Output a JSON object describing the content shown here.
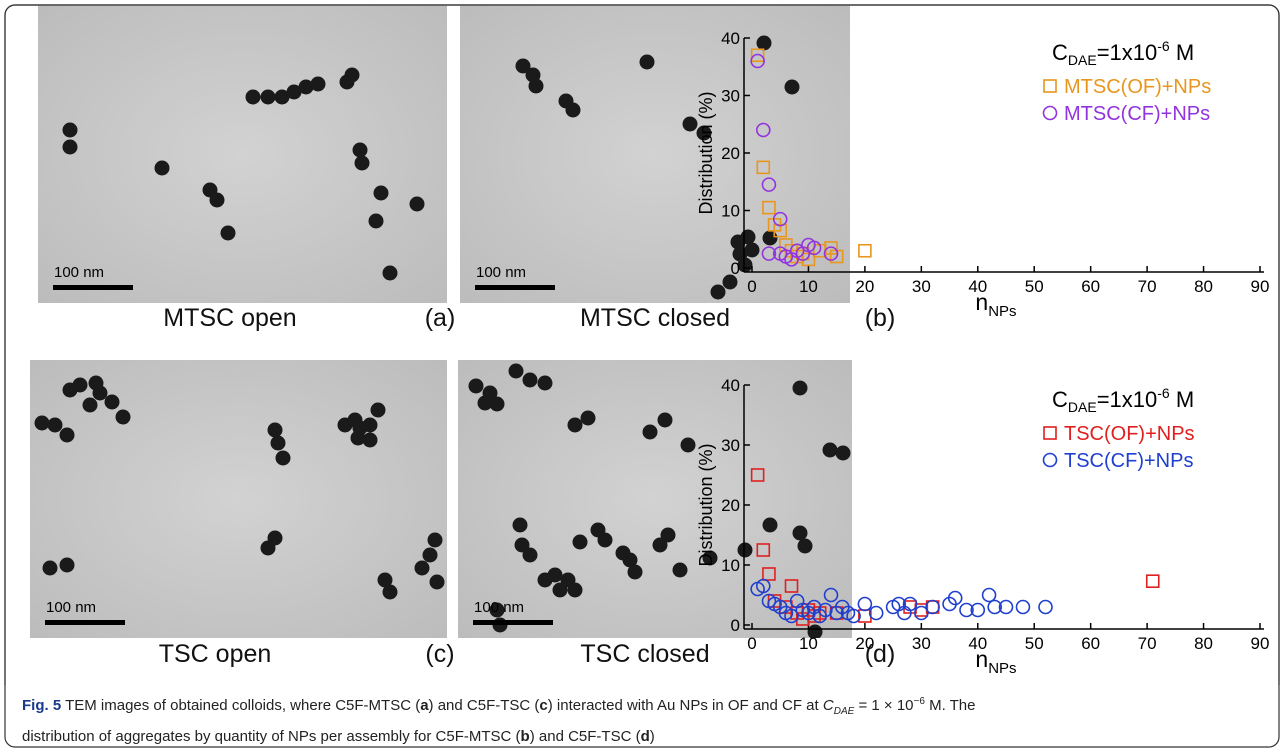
{
  "images": [
    {
      "label": "MTSC open",
      "scale_bar": "100 nm"
    },
    {
      "label": "MTSC closed",
      "scale_bar": "100 nm"
    },
    {
      "label": "TSC open",
      "scale_bar": "100 nm"
    },
    {
      "label": "TSC closed",
      "scale_bar": "100 nm"
    }
  ],
  "panel_letters": [
    "(a)",
    "(b)",
    "(c)",
    "(d)"
  ],
  "chart_data": [
    {
      "type": "scatter",
      "ylabel": "Distribution (%)",
      "xlabel": {
        "main": "n",
        "sub": "NPs"
      },
      "annotation": {
        "c": "C",
        "sub": "DAE",
        "mid": "=1x10",
        "sup": "-6",
        "end": " M"
      },
      "xlim": [
        0,
        90
      ],
      "xticks": [
        0,
        10,
        20,
        30,
        40,
        50,
        60,
        70,
        80,
        90
      ],
      "ylim": [
        0,
        40
      ],
      "yticks": [
        0,
        10,
        20,
        30,
        40
      ],
      "series": [
        {
          "name": "MTSC(OF)+NPs",
          "color": "#e8961e",
          "marker": "square",
          "x": [
            1,
            2,
            3,
            4,
            5,
            6,
            7,
            8,
            9,
            10,
            12,
            14,
            15,
            20
          ],
          "values": [
            37,
            17.5,
            10.5,
            7.5,
            6.5,
            4,
            3,
            2,
            2.5,
            1.5,
            3,
            3.5,
            2,
            3
          ]
        },
        {
          "name": "MTSC(CF)+NPs",
          "color": "#9333e0",
          "marker": "circle",
          "x": [
            1,
            2,
            3,
            5,
            3,
            5,
            6,
            7,
            8,
            9,
            10,
            11,
            14
          ],
          "values": [
            36,
            24,
            14.5,
            8.5,
            2.5,
            2.5,
            2,
            1.5,
            3,
            2.5,
            4,
            3.5,
            2.5
          ]
        }
      ]
    },
    {
      "type": "scatter",
      "ylabel": "Distribution (%)",
      "xlabel": {
        "main": "n",
        "sub": "NPs"
      },
      "annotation": {
        "c": "C",
        "sub": "DAE",
        "mid": "=1x10",
        "sup": "-6",
        "end": " M"
      },
      "xlim": [
        0,
        90
      ],
      "xticks": [
        0,
        10,
        20,
        30,
        40,
        50,
        60,
        70,
        80,
        90
      ],
      "ylim": [
        0,
        40
      ],
      "yticks": [
        0,
        10,
        20,
        30,
        40
      ],
      "series": [
        {
          "name": "TSC(OF)+NPs",
          "color": "#e02020",
          "marker": "square",
          "x": [
            1,
            2,
            3,
            4,
            6,
            7,
            8,
            9,
            10,
            11,
            12,
            15,
            20,
            28,
            30,
            32,
            71
          ],
          "values": [
            25,
            12.5,
            8.5,
            4,
            3,
            6.5,
            2,
            1,
            2.5,
            1.5,
            2,
            2,
            1.5,
            3,
            2.5,
            3,
            7.3
          ]
        },
        {
          "name": "TSC(CF)+NPs",
          "color": "#1f3fd0",
          "marker": "circle",
          "x": [
            1,
            2,
            3,
            4,
            5,
            6,
            7,
            8,
            9,
            10,
            11,
            12,
            13,
            14,
            15,
            16,
            17,
            18,
            20,
            22,
            25,
            26,
            27,
            28,
            30,
            32,
            35,
            36,
            38,
            40,
            42,
            43,
            45,
            48,
            52
          ],
          "values": [
            6,
            6.5,
            4,
            3.5,
            3,
            2,
            1.5,
            4,
            2.5,
            2,
            3,
            1.5,
            2.5,
            5,
            2,
            3,
            2,
            1.5,
            3.5,
            2,
            3,
            3.5,
            2,
            3.5,
            2,
            3,
            3.5,
            4.5,
            2.5,
            2.5,
            5,
            3,
            3,
            3,
            3
          ]
        }
      ]
    }
  ],
  "caption": {
    "parts": [
      "Fig. 5",
      " TEM images of obtained colloids, where C5F-MTSC (",
      "a",
      ") and C5F-TSC (",
      "c",
      ") interacted with Au NPs in OF and CF at ",
      "C",
      "DAE",
      " = 1 × 10",
      "−6",
      " M. The",
      "distribution of aggregates by quantity of NPs per assembly for C5F-MTSC (",
      "b",
      ") and C5F-TSC (",
      "d",
      ")"
    ]
  }
}
